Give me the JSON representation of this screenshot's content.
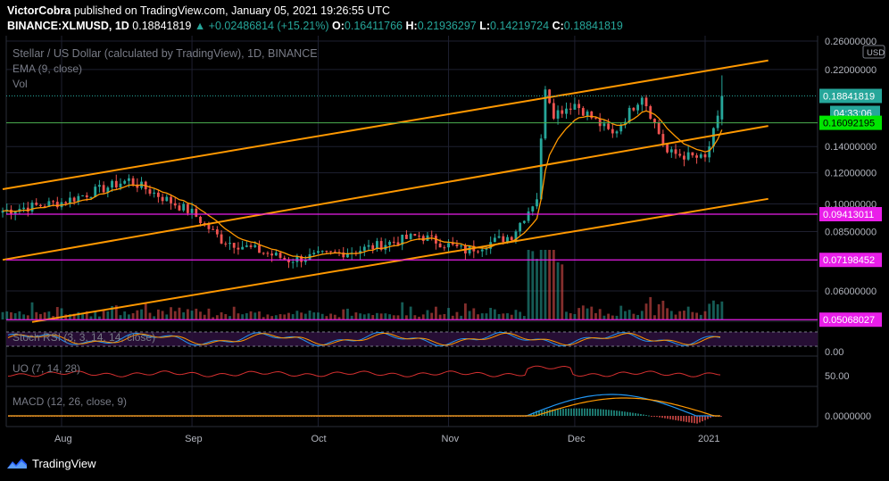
{
  "header": {
    "author": "VictorCobra",
    "published": "published on TradingView.com, January 05, 2021 19:26:55 UTC",
    "symbol": "BINANCE:XLMUSD, 1D",
    "last": "0.18841819",
    "change": "▲ +0.02486814 (+15.21%)",
    "o_label": "O:",
    "o": "0.16411766",
    "h_label": "H:",
    "h": "0.21936297",
    "l_label": "L:",
    "l": "0.14219724",
    "c_label": "C:",
    "c": "0.18841819"
  },
  "legend": {
    "title": "Stellar / US Dollar (calculated by TradingView), 1D, BINANCE",
    "ema": "EMA (9, close)",
    "vol": "Vol",
    "stoch": "Stoch RSI (3, 3, 14, 14, close)",
    "uo": "UO (7, 14, 28)",
    "macd": "MACD (12, 26, close, 9)"
  },
  "footer": {
    "brand": "TradingView"
  },
  "colors": {
    "up": "#26a69a",
    "down": "#ef5350",
    "ema": "#ff9800",
    "channel": "#ff9800",
    "magenta": "#e91ee9",
    "green_line": "#4caf50",
    "last_tag": "#26a69a",
    "uo": "#d32f2f",
    "macd": "#2196f3",
    "signal": "#ff9800",
    "stoch_k": "#2196f3",
    "stoch_d": "#ff9800"
  },
  "chart_data": {
    "type": "candlestick",
    "scale": "log",
    "price_axis": {
      "ticks": [
        "0.26000000",
        "0.22000000",
        "0.14000000",
        "0.12000000",
        "0.10000000",
        "0.08500000",
        "0.06000000"
      ],
      "unit_label": "USD"
    },
    "price_labels": [
      {
        "value": "0.18841819",
        "kind": "last"
      },
      {
        "value": "04:33:06",
        "kind": "countdown"
      },
      {
        "value": "0.16092195",
        "kind": "green-level"
      },
      {
        "value": "0.09413011",
        "kind": "magenta-level"
      },
      {
        "value": "0.07198452",
        "kind": "magenta-level"
      },
      {
        "value": "0.05068027",
        "kind": "magenta-level"
      }
    ],
    "levels": [
      0.16092195,
      0.09413011,
      0.07198452,
      0.05068027
    ],
    "time_axis": [
      "Aug",
      "Sep",
      "Oct",
      "Nov",
      "Dec",
      "2021"
    ],
    "key_closes": [
      {
        "x": "2020-07-18",
        "y": 0.096
      },
      {
        "x": "2020-08-01",
        "y": 0.101
      },
      {
        "x": "2020-08-17",
        "y": 0.115
      },
      {
        "x": "2020-09-01",
        "y": 0.095
      },
      {
        "x": "2020-09-08",
        "y": 0.081
      },
      {
        "x": "2020-09-24",
        "y": 0.072
      },
      {
        "x": "2020-10-10",
        "y": 0.076
      },
      {
        "x": "2020-10-25",
        "y": 0.083
      },
      {
        "x": "2020-11-05",
        "y": 0.076
      },
      {
        "x": "2020-11-16",
        "y": 0.083
      },
      {
        "x": "2020-11-22",
        "y": 0.104
      },
      {
        "x": "2020-11-24",
        "y": 0.2
      },
      {
        "x": "2020-11-26",
        "y": 0.17
      },
      {
        "x": "2020-12-01",
        "y": 0.18
      },
      {
        "x": "2020-12-10",
        "y": 0.15
      },
      {
        "x": "2020-12-17",
        "y": 0.19
      },
      {
        "x": "2020-12-23",
        "y": 0.135
      },
      {
        "x": "2021-01-01",
        "y": 0.13
      },
      {
        "x": "2021-01-04",
        "y": 0.164
      },
      {
        "x": "2021-01-05",
        "y": 0.188
      }
    ],
    "channel": [
      {
        "name": "upper",
        "x": [
          "2020-07-18",
          "2021-01-16"
        ],
        "y": [
          0.109,
          0.232
        ]
      },
      {
        "name": "middle",
        "x": [
          "2020-07-18",
          "2021-01-16"
        ],
        "y": [
          0.072,
          0.158
        ]
      },
      {
        "name": "lower",
        "x": [
          "2020-07-25",
          "2021-01-16"
        ],
        "y": [
          0.05,
          0.103
        ]
      }
    ],
    "stoch_axis": [
      "0.00"
    ],
    "uo_axis": [
      "50.00"
    ],
    "macd_axis": [
      "0.0000000"
    ]
  }
}
